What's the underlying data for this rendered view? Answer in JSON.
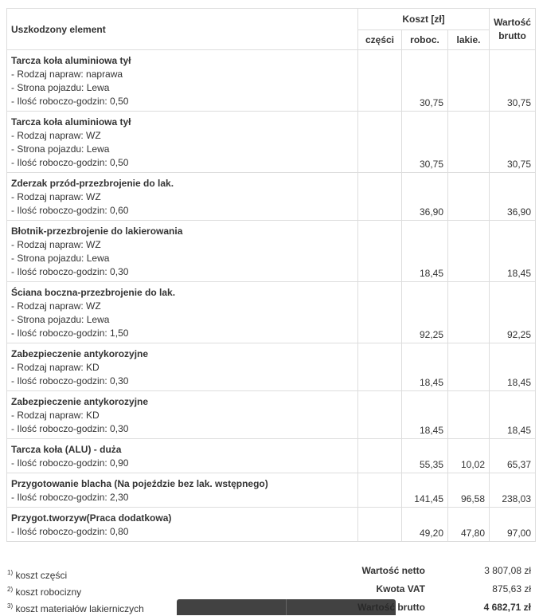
{
  "header": {
    "element": "Uszkodzony element",
    "cost": "Koszt [zł]",
    "parts": "części",
    "labor": "roboc.",
    "paint": "lakie.",
    "gross": "Wartość brutto"
  },
  "rows": [
    {
      "title": "Tarcza koła aluminiowa tył",
      "lines": [
        "- Rodzaj napraw: naprawa",
        "- Strona pojazdu: Lewa",
        "- Ilość roboczo-godzin: 0,50"
      ],
      "parts": "",
      "labor": "30,75",
      "paint": "",
      "gross": "30,75"
    },
    {
      "title": "Tarcza koła aluminiowa tył",
      "lines": [
        "- Rodzaj napraw: WZ",
        "- Strona pojazdu: Lewa",
        "- Ilość roboczo-godzin: 0,50"
      ],
      "parts": "",
      "labor": "30,75",
      "paint": "",
      "gross": "30,75"
    },
    {
      "title": "Zderzak przód-przezbrojenie do lak.",
      "lines": [
        "- Rodzaj napraw: WZ",
        "- Ilość roboczo-godzin: 0,60"
      ],
      "parts": "",
      "labor": "36,90",
      "paint": "",
      "gross": "36,90"
    },
    {
      "title": "Błotnik-przezbrojenie do lakierowania",
      "lines": [
        "- Rodzaj napraw: WZ",
        "- Strona pojazdu: Lewa",
        "- Ilość roboczo-godzin: 0,30"
      ],
      "parts": "",
      "labor": "18,45",
      "paint": "",
      "gross": "18,45"
    },
    {
      "title": "Ściana boczna-przezbrojenie do lak.",
      "lines": [
        "- Rodzaj napraw: WZ",
        "- Strona pojazdu: Lewa",
        "- Ilość roboczo-godzin: 1,50"
      ],
      "parts": "",
      "labor": "92,25",
      "paint": "",
      "gross": "92,25"
    },
    {
      "title": "Zabezpieczenie antykorozyjne",
      "lines": [
        "- Rodzaj napraw: KD",
        "- Ilość roboczo-godzin: 0,30"
      ],
      "parts": "",
      "labor": "18,45",
      "paint": "",
      "gross": "18,45"
    },
    {
      "title": "Zabezpieczenie antykorozyjne",
      "lines": [
        "- Rodzaj napraw: KD",
        "- Ilość roboczo-godzin: 0,30"
      ],
      "parts": "",
      "labor": "18,45",
      "paint": "",
      "gross": "18,45"
    },
    {
      "title": "Tarcza koła (ALU) - duża",
      "lines": [
        "- Ilość roboczo-godzin: 0,90"
      ],
      "parts": "",
      "labor": "55,35",
      "paint": "10,02",
      "gross": "65,37"
    },
    {
      "title": "Przygotowanie blacha (Na pojeździe bez lak. wstępnego)",
      "lines": [
        "- Ilość roboczo-godzin: 2,30"
      ],
      "parts": "",
      "labor": "141,45",
      "paint": "96,58",
      "gross": "238,03"
    },
    {
      "title": "Przygot.tworzyw(Praca dodatkowa)",
      "lines": [
        "- Ilość roboczo-godzin: 0,80"
      ],
      "parts": "",
      "labor": "49,20",
      "paint": "47,80",
      "gross": "97,00"
    }
  ],
  "footnotes": [
    {
      "n": "1)",
      "text": "koszt części"
    },
    {
      "n": "2)",
      "text": "koszt robocizny"
    },
    {
      "n": "3)",
      "text": "koszt materiałów lakierniczych"
    }
  ],
  "summary": [
    {
      "label": "Wartość netto",
      "value": "3 807,08 zł"
    },
    {
      "label": "Kwota VAT",
      "value": "875,63 zł"
    },
    {
      "label": "Wartość brutto",
      "value": "4 682,71 zł"
    }
  ]
}
